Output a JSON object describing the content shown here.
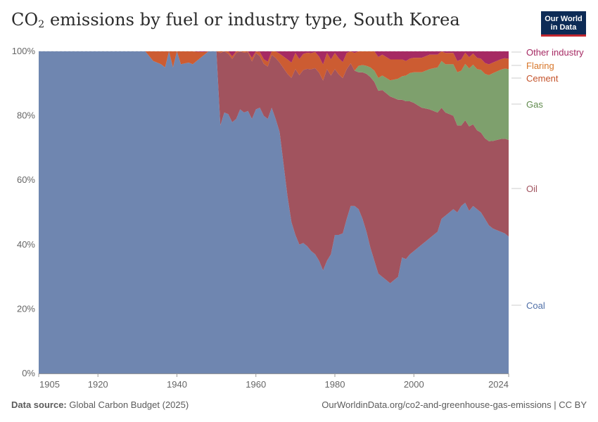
{
  "header": {
    "title_main": "CO",
    "title_sub": "2",
    "title_rest": " emissions by fuel or industry type, South Korea",
    "logo_line1": "Our World",
    "logo_line2": "in Data"
  },
  "footer": {
    "source_label": "Data source:",
    "source_value": " Global Carbon Budget (2025)",
    "url": "OurWorldinData.org/co2-and-greenhouse-gas-emissions | CC BY"
  },
  "colors": {
    "coal": "#6f86b0",
    "oil": "#a1535e",
    "gas": "#7ea06d",
    "cement": "#cc5c32",
    "flaring": "#e0812e",
    "other": "#a62a63",
    "grid": "#dddddd",
    "axis": "#999999"
  },
  "chart_data": {
    "type": "area",
    "stacked": true,
    "normalized": true,
    "title": "CO₂ emissions by fuel or industry type, South Korea",
    "x_ticks": [
      "1905",
      "1920",
      "1940",
      "1960",
      "1980",
      "2000",
      "2024"
    ],
    "y_ticks": [
      "0%",
      "20%",
      "40%",
      "60%",
      "80%",
      "100%"
    ],
    "xlim": [
      1905,
      2024
    ],
    "ylim": [
      0,
      100
    ],
    "legend_placement": "right",
    "series": [
      {
        "name": "Coal",
        "key": "coal",
        "points": [
          [
            1905,
            100
          ],
          [
            1920,
            100
          ],
          [
            1932,
            100
          ],
          [
            1934,
            97
          ],
          [
            1936,
            96
          ],
          [
            1937,
            95
          ],
          [
            1938,
            100
          ],
          [
            1939,
            95
          ],
          [
            1940,
            100
          ],
          [
            1941,
            96
          ],
          [
            1943,
            96.5
          ],
          [
            1944,
            96
          ],
          [
            1946,
            98
          ],
          [
            1947,
            99
          ],
          [
            1948,
            100
          ],
          [
            1949,
            100
          ],
          [
            1950,
            100
          ],
          [
            1951,
            77
          ],
          [
            1952,
            81
          ],
          [
            1953,
            80.5
          ],
          [
            1954,
            78
          ],
          [
            1955,
            79
          ],
          [
            1956,
            82
          ],
          [
            1957,
            81
          ],
          [
            1958,
            81.5
          ],
          [
            1959,
            79
          ],
          [
            1960,
            82
          ],
          [
            1961,
            82.5
          ],
          [
            1962,
            80
          ],
          [
            1963,
            79
          ],
          [
            1964,
            82.5
          ],
          [
            1965,
            79
          ],
          [
            1966,
            75
          ],
          [
            1967,
            65
          ],
          [
            1968,
            55
          ],
          [
            1969,
            47
          ],
          [
            1970,
            43
          ],
          [
            1971,
            40
          ],
          [
            1972,
            40.5
          ],
          [
            1973,
            39.5
          ],
          [
            1974,
            38
          ],
          [
            1975,
            37
          ],
          [
            1976,
            35
          ],
          [
            1977,
            32
          ],
          [
            1978,
            35
          ],
          [
            1979,
            37
          ],
          [
            1980,
            43
          ],
          [
            1981,
            43
          ],
          [
            1982,
            43.5
          ],
          [
            1983,
            48
          ],
          [
            1984,
            52
          ],
          [
            1985,
            52
          ],
          [
            1986,
            51
          ],
          [
            1987,
            48
          ],
          [
            1988,
            44
          ],
          [
            1989,
            39
          ],
          [
            1990,
            35
          ],
          [
            1991,
            31
          ],
          [
            1992,
            30
          ],
          [
            1993,
            29
          ],
          [
            1994,
            28
          ],
          [
            1995,
            29
          ],
          [
            1996,
            30
          ],
          [
            1997,
            36
          ],
          [
            1998,
            35.5
          ],
          [
            1999,
            37
          ],
          [
            2000,
            38
          ],
          [
            2001,
            39
          ],
          [
            2002,
            40
          ],
          [
            2003,
            41
          ],
          [
            2004,
            42
          ],
          [
            2005,
            43
          ],
          [
            2006,
            44
          ],
          [
            2007,
            48
          ],
          [
            2008,
            49
          ],
          [
            2009,
            50
          ],
          [
            2010,
            51
          ],
          [
            2011,
            50
          ],
          [
            2012,
            52
          ],
          [
            2013,
            53
          ],
          [
            2014,
            50.5
          ],
          [
            2015,
            52
          ],
          [
            2016,
            51
          ],
          [
            2017,
            50
          ],
          [
            2018,
            48
          ],
          [
            2019,
            46
          ],
          [
            2020,
            45
          ],
          [
            2021,
            44.5
          ],
          [
            2022,
            44
          ],
          [
            2023,
            43.5
          ],
          [
            2024,
            42.5
          ]
        ]
      },
      {
        "name": "Oil",
        "key": "oil",
        "points": [
          [
            1905,
            0
          ],
          [
            1949,
            0
          ],
          [
            1950,
            0.5
          ],
          [
            1951,
            22.5
          ],
          [
            1953,
            18.8
          ],
          [
            1955,
            20.5
          ],
          [
            1957,
            18.6
          ],
          [
            1960,
            17.5
          ],
          [
            1961,
            16
          ],
          [
            1964,
            16.4
          ],
          [
            1966,
            21.5
          ],
          [
            1968,
            38
          ],
          [
            1970,
            51.5
          ],
          [
            1972,
            53.7
          ],
          [
            1975,
            57.8
          ],
          [
            1978,
            59.5
          ],
          [
            1980,
            51.5
          ],
          [
            1983,
            46.5
          ],
          [
            1985,
            42
          ],
          [
            1986,
            42.5
          ],
          [
            1987,
            45.5
          ],
          [
            1988,
            49
          ],
          [
            1989,
            53
          ],
          [
            1990,
            55.5
          ],
          [
            1992,
            58
          ],
          [
            1994,
            58
          ],
          [
            1996,
            55
          ],
          [
            1997,
            49
          ],
          [
            1998,
            49
          ],
          [
            2000,
            46
          ],
          [
            2002,
            42.5
          ],
          [
            2004,
            40
          ],
          [
            2006,
            37
          ],
          [
            2008,
            32
          ],
          [
            2010,
            29
          ],
          [
            2012,
            25
          ],
          [
            2014,
            26.2
          ],
          [
            2016,
            24.5
          ],
          [
            2018,
            25
          ],
          [
            2020,
            27.2
          ],
          [
            2022,
            28.8
          ],
          [
            2024,
            30
          ]
        ]
      },
      {
        "name": "Gas",
        "key": "gas",
        "points": [
          [
            1905,
            0
          ],
          [
            1985,
            0
          ],
          [
            1986,
            2
          ],
          [
            1988,
            2.5
          ],
          [
            1990,
            3.5
          ],
          [
            1992,
            4.5
          ],
          [
            1994,
            5
          ],
          [
            1996,
            6.5
          ],
          [
            1998,
            8
          ],
          [
            2000,
            9.5
          ],
          [
            2002,
            11
          ],
          [
            2004,
            12.5
          ],
          [
            2006,
            14
          ],
          [
            2008,
            15
          ],
          [
            2010,
            16
          ],
          [
            2012,
            17
          ],
          [
            2014,
            18
          ],
          [
            2016,
            19
          ],
          [
            2018,
            20
          ],
          [
            2020,
            21
          ],
          [
            2022,
            21.5
          ],
          [
            2024,
            22
          ]
        ]
      },
      {
        "name": "Cement",
        "key": "cement",
        "points": [
          [
            1905,
            0
          ],
          [
            1932,
            0
          ],
          [
            1934,
            3
          ],
          [
            1936,
            4
          ],
          [
            1937,
            5
          ],
          [
            1938,
            0
          ],
          [
            1939,
            5
          ],
          [
            1940,
            0
          ],
          [
            1941,
            4
          ],
          [
            1943,
            3.5
          ],
          [
            1944,
            4
          ],
          [
            1946,
            1.8
          ],
          [
            1947,
            0.8
          ],
          [
            1948,
            0
          ],
          [
            1950,
            0
          ],
          [
            1951,
            0.8
          ],
          [
            1955,
            0.8
          ],
          [
            1960,
            1.2
          ],
          [
            1964,
            1.6
          ],
          [
            1966,
            2.8
          ],
          [
            1968,
            4.5
          ],
          [
            1970,
            5
          ],
          [
            1974,
            5
          ],
          [
            1978,
            5
          ],
          [
            1980,
            5
          ],
          [
            1983,
            5
          ],
          [
            1985,
            5.5
          ],
          [
            1988,
            6
          ],
          [
            1990,
            6.5
          ],
          [
            1992,
            6.5
          ],
          [
            1994,
            6.5
          ],
          [
            1996,
            6
          ],
          [
            1998,
            4.5
          ],
          [
            2000,
            4.5
          ],
          [
            2004,
            4.5
          ],
          [
            2008,
            3.5
          ],
          [
            2012,
            3.5
          ],
          [
            2016,
            3.5
          ],
          [
            2020,
            3.3
          ],
          [
            2024,
            3.2
          ]
        ]
      },
      {
        "name": "Flaring",
        "key": "flaring",
        "points": [
          [
            1905,
            0
          ],
          [
            2024,
            0
          ]
        ]
      },
      {
        "name": "Other industry",
        "key": "other",
        "points": [
          [
            1905,
            0
          ],
          [
            1988,
            0
          ],
          [
            1990,
            1
          ],
          [
            1994,
            1.2
          ],
          [
            1998,
            1.3
          ],
          [
            2000,
            1.5
          ],
          [
            2004,
            1.5
          ],
          [
            2008,
            1.6
          ],
          [
            2012,
            1.6
          ],
          [
            2016,
            1.7
          ],
          [
            2020,
            1.8
          ],
          [
            2024,
            1.8
          ]
        ]
      }
    ]
  }
}
